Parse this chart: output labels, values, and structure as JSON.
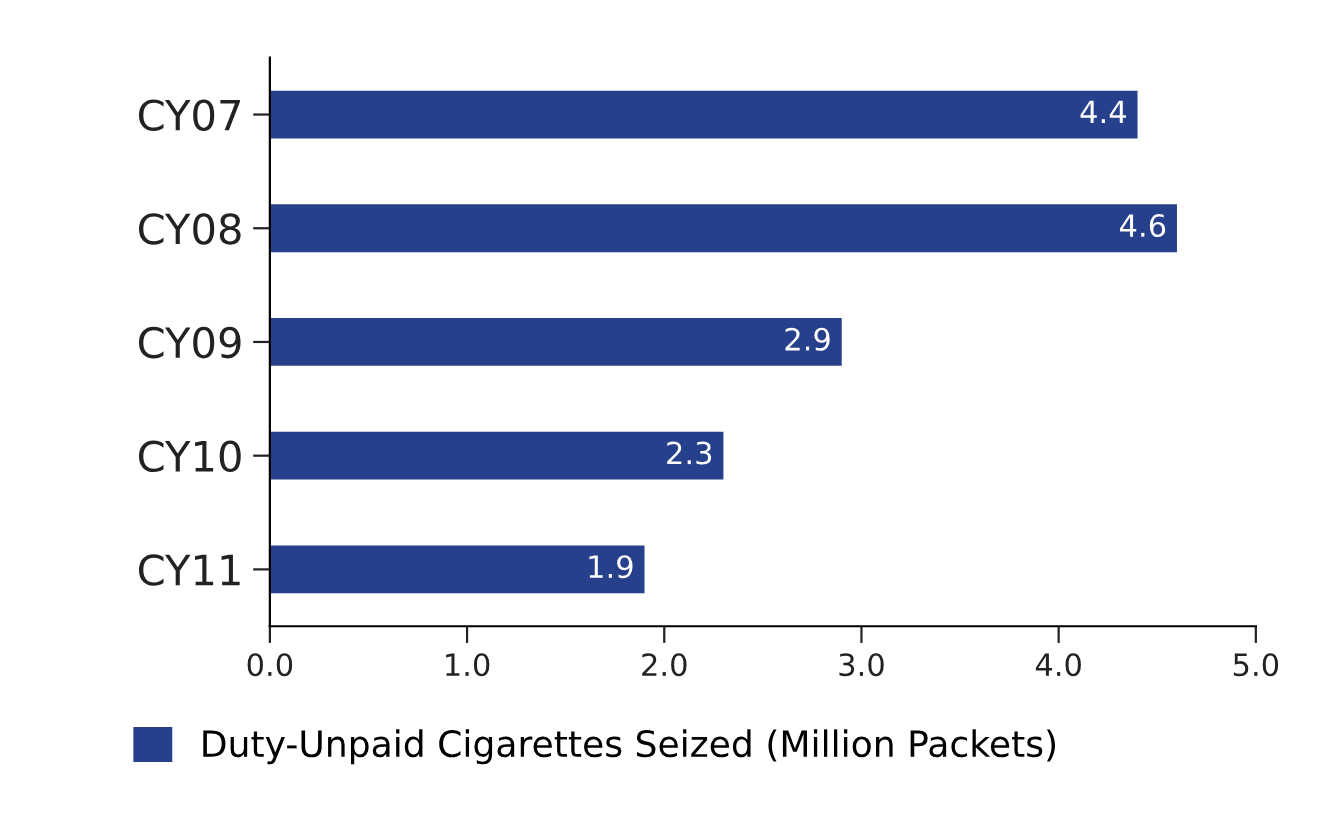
{
  "chart_data": {
    "type": "bar",
    "orientation": "horizontal",
    "categories": [
      "CY07",
      "CY08",
      "CY09",
      "CY10",
      "CY11"
    ],
    "series": [
      {
        "name": "Duty-Unpaid Cigarettes Seized (Million Packets)",
        "color": "#27408b",
        "values": [
          4.4,
          4.6,
          2.9,
          2.3,
          1.9
        ]
      }
    ],
    "xlim": [
      0,
      5
    ],
    "xticks": [
      {
        "value": 0,
        "label": "0.0"
      },
      {
        "value": 1,
        "label": "1.0"
      },
      {
        "value": 2,
        "label": "2.0"
      },
      {
        "value": 3,
        "label": "3.0"
      },
      {
        "value": 4,
        "label": "4.0"
      },
      {
        "value": 5,
        "label": "5.0"
      }
    ],
    "data_labels": true,
    "legend": "bottom",
    "grid": false
  }
}
